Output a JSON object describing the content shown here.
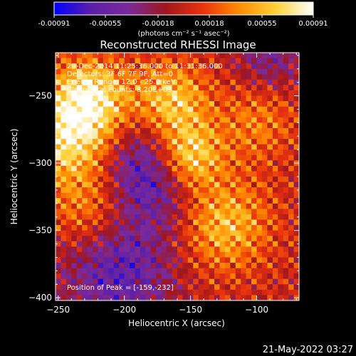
{
  "timestamp": "21-May-2022 03:27",
  "chart_data": {
    "type": "heatmap",
    "title": "Reconstructed RHESSI Image",
    "xlabel": "Heliocentric X (arcsec)",
    "ylabel": "Heliocentric Y (arcsec)",
    "xlim": [
      -252,
      -68
    ],
    "ylim": [
      -402,
      -218
    ],
    "x_ticks": [
      -250,
      -200,
      -150,
      -100
    ],
    "y_ticks": [
      -400,
      -350,
      -300,
      -250
    ],
    "colorbar": {
      "range": [
        -0.00091,
        0.00091
      ],
      "ticks": [
        "-0.00091",
        "-0.00055",
        "-0.00018",
        "0.00018",
        "0.00055",
        "0.00091"
      ],
      "unit_label": "(photons cm⁻² s⁻¹ asec⁻²)",
      "colormap_stops": [
        "#0000ff",
        "#5a1fa8",
        "#7a2a9a",
        "#a0161e",
        "#e8320f",
        "#ff8c00",
        "#ffd23a",
        "#ffffff"
      ]
    },
    "annotations": {
      "time_range": "29-Dec-2014 11:25:36.000 to 11:31:36.000",
      "detectors": "Detectors: 3F 6F 7F 9F, Att=0",
      "energy_range": "Energy Range: 12.0 - 25.0 keV",
      "clean_counts": "Clean    Total counts: 8.20E+03",
      "peak_position": "Position of Peak = [-159,-232]"
    },
    "image_grid": {
      "cols": 46,
      "rows": 46,
      "sources": [
        {
          "x": -240,
          "y": -280,
          "amplitude": 0.00078,
          "sigma": 25
        },
        {
          "x": -225,
          "y": -250,
          "amplitude": 0.00065,
          "sigma": 20
        },
        {
          "x": -152,
          "y": -295,
          "amplitude": 0.00091,
          "sigma": 18
        },
        {
          "x": -165,
          "y": -255,
          "amplitude": 0.0007,
          "sigma": 20
        },
        {
          "x": -125,
          "y": -345,
          "amplitude": 0.0006,
          "sigma": 24
        },
        {
          "x": -225,
          "y": -335,
          "amplitude": 0.00045,
          "sigma": 22
        },
        {
          "x": -100,
          "y": -270,
          "amplitude": 0.00035,
          "sigma": 20
        }
      ],
      "holes": [
        {
          "x": -180,
          "y": -305,
          "amplitude": -0.00075,
          "sigma": 28
        },
        {
          "x": -205,
          "y": -380,
          "amplitude": -0.0006,
          "sigma": 30
        },
        {
          "x": -90,
          "y": -220,
          "amplitude": -0.0004,
          "sigma": 18
        }
      ],
      "ripple_amplitude": 0.00028,
      "ripple_period_arcsec": 11
    }
  }
}
